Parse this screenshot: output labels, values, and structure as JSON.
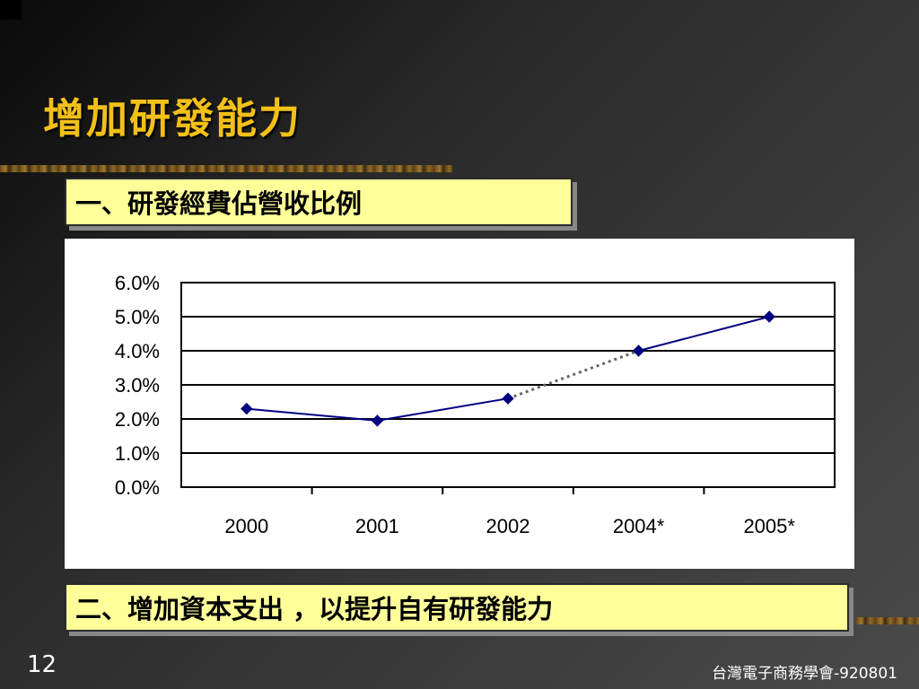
{
  "title": "增加研發能力",
  "note1": "一、研發經費佔營收比例",
  "note2": "二、增加資本支出  ，以提升自有研發能力",
  "page_number": "12",
  "footer": "台灣電子商務學會-920801",
  "colors": {
    "title": "#f2c018",
    "note_bg": "#ffff99",
    "series": "#000080",
    "projection": "#666666"
  },
  "chart_data": {
    "type": "line",
    "categories": [
      "2000",
      "2001",
      "2002",
      "2004*",
      "2005*"
    ],
    "values": [
      2.3,
      1.95,
      2.6,
      4.0,
      5.0
    ],
    "dashed_segment": [
      2,
      3
    ],
    "y_ticks": [
      "0.0%",
      "1.0%",
      "2.0%",
      "3.0%",
      "4.0%",
      "5.0%",
      "6.0%"
    ],
    "ylim": [
      0,
      6
    ],
    "grid": true,
    "legend": "none"
  }
}
